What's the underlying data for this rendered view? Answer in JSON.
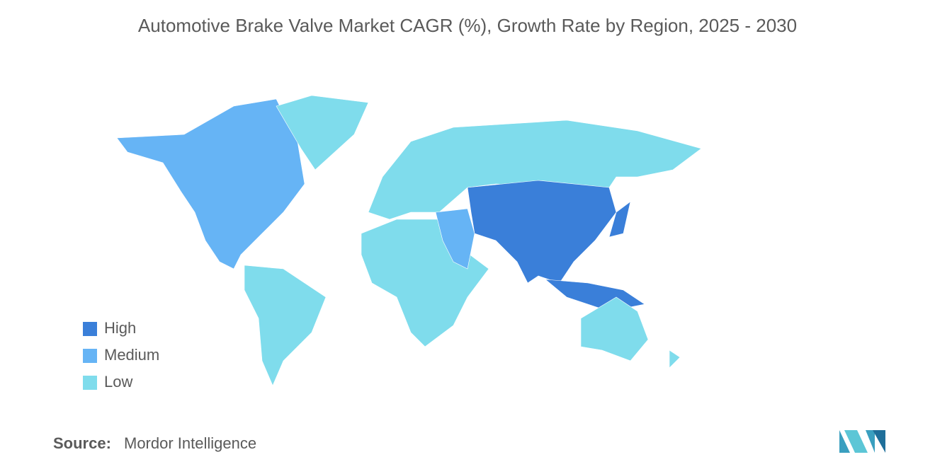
{
  "title": "Automotive Brake Valve Market CAGR (%), Growth Rate by Region, 2025 - 2030",
  "legend": [
    {
      "label": "High",
      "color": "#3a7fd9"
    },
    {
      "label": "Medium",
      "color": "#66b4f5"
    },
    {
      "label": "Low",
      "color": "#7fdcec"
    }
  ],
  "source": {
    "label": "Source:",
    "text": "Mordor Intelligence"
  }
}
